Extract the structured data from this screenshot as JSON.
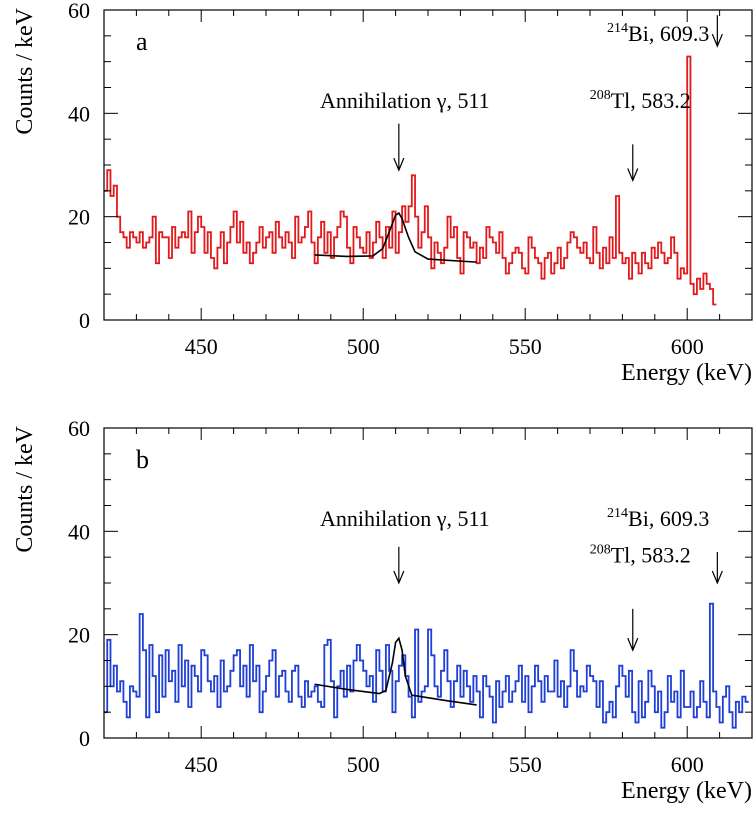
{
  "chart_data": [
    {
      "type": "line",
      "panel_label": "a",
      "xlabel": "Energy (keV)",
      "ylabel": "Counts / keV",
      "xlim": [
        420,
        620
      ],
      "ylim": [
        0,
        60
      ],
      "xticks": [
        450,
        500,
        550,
        600
      ],
      "yticks": [
        0,
        20,
        40,
        60
      ],
      "grid": false,
      "series": [
        {
          "color": "#e31a1c",
          "style": "step",
          "bin_width": 1,
          "x_start": 420,
          "values": [
            25,
            29,
            24,
            26,
            20,
            17,
            16,
            14,
            17,
            16,
            15,
            17,
            14,
            15,
            16,
            20,
            11,
            17,
            16,
            16,
            12,
            18,
            14,
            16,
            17,
            16,
            21,
            13,
            17,
            20,
            18,
            13,
            17,
            12,
            10,
            14,
            17,
            11,
            15,
            18,
            21,
            15,
            19,
            13,
            15,
            11,
            13,
            15,
            18,
            14,
            16,
            17,
            13,
            19,
            16,
            14,
            17,
            15,
            12,
            20,
            15,
            16,
            18,
            21,
            15,
            11,
            16,
            19,
            13,
            17,
            12,
            16,
            18,
            21,
            20,
            14,
            11,
            18,
            16,
            14,
            13,
            17,
            12,
            15,
            19,
            16,
            12,
            18,
            14,
            21,
            13,
            17,
            22,
            19,
            22,
            28,
            20,
            14,
            17,
            22,
            16,
            10,
            15,
            13,
            11,
            14,
            20,
            16,
            18,
            12,
            9,
            17,
            16,
            14,
            15,
            11,
            14,
            12,
            18,
            16,
            15,
            13,
            17,
            12,
            9,
            11,
            13,
            14,
            13,
            10,
            9,
            16,
            14,
            12,
            11,
            8,
            12,
            13,
            9,
            11,
            14,
            10,
            12,
            15,
            17,
            16,
            14,
            13,
            15,
            12,
            11,
            18,
            13,
            10,
            14,
            11,
            16,
            12,
            24,
            13,
            11,
            12,
            8,
            13,
            11,
            9,
            13,
            11,
            10,
            14,
            12,
            15,
            13,
            11,
            12,
            16,
            13,
            8,
            10,
            9,
            51,
            7,
            5,
            8,
            6,
            9,
            7,
            6,
            3
          ]
        }
      ],
      "fit": {
        "color": "#000000",
        "points": [
          [
            485,
            12.6
          ],
          [
            495,
            12.3
          ],
          [
            503,
            12.4
          ],
          [
            506,
            13.8
          ],
          [
            508,
            17
          ],
          [
            510,
            20.3
          ],
          [
            511,
            20.7
          ],
          [
            512,
            19.6
          ],
          [
            514,
            16
          ],
          [
            516,
            13.2
          ],
          [
            520,
            11.8
          ],
          [
            535,
            11.2
          ]
        ]
      },
      "annotations": [
        {
          "text": "Annihilation γ, 511",
          "x": 511,
          "arrow_from": 38,
          "arrow_to": 29,
          "label_y": 41
        },
        {
          "sup": "208",
          "text": "Tl, 583.2",
          "x": 583.2,
          "arrow_from": 34,
          "arrow_to": 27,
          "label_y": 41
        },
        {
          "sup": "214",
          "text": "Bi, 609.3",
          "x": 609.3,
          "arrow_from": 59,
          "arrow_to": 53,
          "label_y": 54
        }
      ]
    },
    {
      "type": "line",
      "panel_label": "b",
      "xlabel": "Energy (keV)",
      "ylabel": "Counts / keV",
      "xlim": [
        420,
        620
      ],
      "ylim": [
        0,
        60
      ],
      "xticks": [
        450,
        500,
        550,
        600
      ],
      "yticks": [
        0,
        20,
        40,
        60
      ],
      "grid": false,
      "series": [
        {
          "color": "#1f3fd6",
          "style": "step",
          "bin_width": 1,
          "x_start": 420,
          "values": [
            5,
            19,
            10,
            14,
            9,
            11,
            7,
            4,
            10,
            9,
            8,
            24,
            17,
            4,
            18,
            12,
            5,
            16,
            8,
            17,
            11,
            13,
            7,
            18,
            10,
            15,
            6,
            14,
            12,
            9,
            17,
            16,
            11,
            9,
            12,
            6,
            15,
            9,
            10,
            13,
            16,
            17,
            10,
            14,
            8,
            18,
            11,
            14,
            5,
            9,
            12,
            15,
            17,
            8,
            12,
            13,
            9,
            7,
            13,
            14,
            8,
            6,
            11,
            8,
            9,
            10,
            7,
            6,
            18,
            19,
            11,
            4,
            10,
            13,
            8,
            14,
            9,
            15,
            18,
            15,
            13,
            10,
            12,
            7,
            17,
            13,
            9,
            18,
            13,
            5,
            11,
            14,
            16,
            12,
            8,
            4,
            21,
            7,
            9,
            10,
            21,
            16,
            10,
            8,
            13,
            17,
            11,
            6,
            11,
            14,
            8,
            13,
            10,
            7,
            12,
            9,
            4,
            12,
            10,
            8,
            3,
            11,
            6,
            9,
            12,
            7,
            9,
            11,
            14,
            7,
            12,
            5,
            10,
            14,
            11,
            7,
            12,
            9,
            9,
            15,
            8,
            11,
            6,
            10,
            17,
            13,
            8,
            10,
            9,
            14,
            12,
            11,
            6,
            11,
            3,
            5,
            7,
            4,
            10,
            14,
            12,
            8,
            13,
            5,
            3,
            11,
            4,
            7,
            13,
            10,
            5,
            9,
            2,
            5,
            12,
            7,
            9,
            4,
            13,
            6,
            6,
            9,
            4,
            6,
            11,
            7,
            4,
            26,
            9,
            6,
            3,
            8,
            10,
            5,
            2,
            7,
            5,
            8,
            7
          ]
        }
      ],
      "fit": {
        "color": "#000000",
        "points": [
          [
            485,
            10.4
          ],
          [
            495,
            9.4
          ],
          [
            505,
            8.6
          ],
          [
            507,
            9.2
          ],
          [
            509,
            14.5
          ],
          [
            510,
            18.5
          ],
          [
            511,
            19.3
          ],
          [
            512,
            17
          ],
          [
            513,
            12
          ],
          [
            515,
            8.3
          ],
          [
            525,
            7.3
          ],
          [
            535,
            6.4
          ]
        ]
      },
      "annotations": [
        {
          "text": "Annihilation γ, 511",
          "x": 511,
          "arrow_from": 37,
          "arrow_to": 30,
          "label_y": 41
        },
        {
          "sup": "208",
          "text": "Tl, 583.2",
          "x": 583.2,
          "arrow_from": 25,
          "arrow_to": 17,
          "label_y": 34
        },
        {
          "sup": "214",
          "text": "Bi, 609.3",
          "x": 609.3,
          "arrow_from": 36,
          "arrow_to": 30,
          "label_y": 41
        }
      ]
    }
  ]
}
